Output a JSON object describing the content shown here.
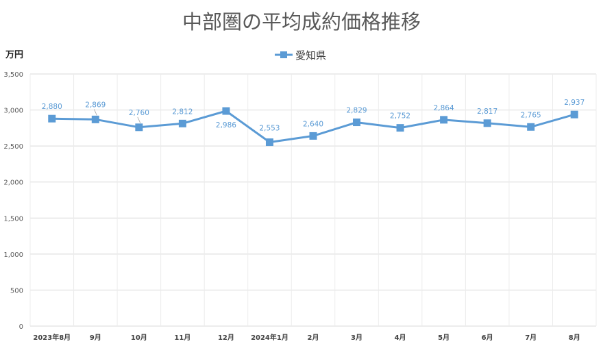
{
  "chart_data": {
    "type": "line",
    "title": "中部圏の平均成約価格推移",
    "ylabel": "万円",
    "xlabel": "",
    "ylim": [
      0,
      3500
    ],
    "y_ticks": [
      "0",
      "500",
      "1,000",
      "1,500",
      "2,000",
      "2,500",
      "3,000",
      "3,500"
    ],
    "categories": [
      "2023年8月",
      "9月",
      "10月",
      "11月",
      "12月",
      "2024年1月",
      "2月",
      "3月",
      "4月",
      "5月",
      "6月",
      "7月",
      "8月"
    ],
    "series": [
      {
        "name": "愛知県",
        "color": "#5b9bd5",
        "marker": "square",
        "values": [
          2880,
          2869,
          2760,
          2812,
          2986,
          2553,
          2640,
          2829,
          2752,
          2864,
          2817,
          2765,
          2937
        ],
        "labels": [
          "2,880",
          "2,869",
          "2,760",
          "2,812",
          "2,986",
          "2,553",
          "2,640",
          "2,829",
          "2,752",
          "2,864",
          "2,817",
          "2,765",
          "2,937"
        ]
      }
    ],
    "grid": true,
    "legend_position": "top-center"
  }
}
